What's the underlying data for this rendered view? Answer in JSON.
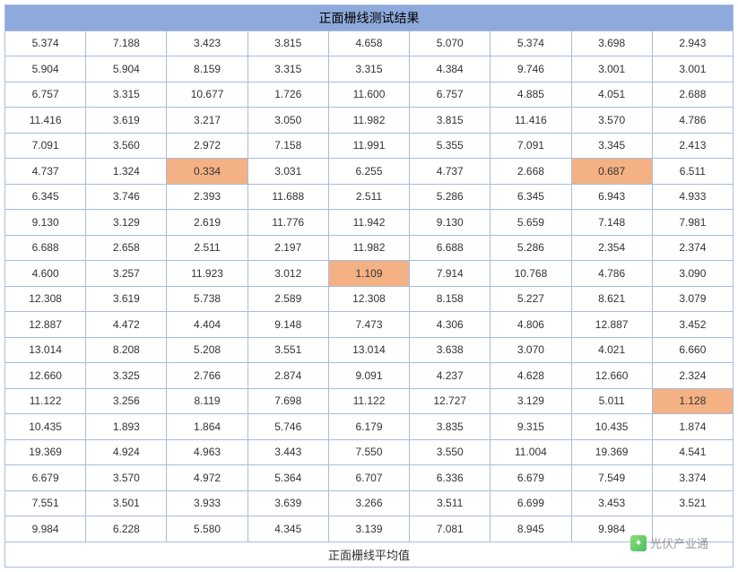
{
  "table": {
    "title": "正面栅线测试结果",
    "footer": "正面栅线平均值",
    "columns": 9,
    "title_bg": "#8ea9db",
    "border_color": "#a6bce0",
    "highlight_bg": "#f4b183",
    "font_size_cell": 12,
    "font_size_title": 14,
    "rows": [
      [
        {
          "v": "5.374"
        },
        {
          "v": "7.188"
        },
        {
          "v": "3.423"
        },
        {
          "v": "3.815"
        },
        {
          "v": "4.658"
        },
        {
          "v": "5.070"
        },
        {
          "v": "5.374"
        },
        {
          "v": "3.698"
        },
        {
          "v": "2.943"
        }
      ],
      [
        {
          "v": "5.904"
        },
        {
          "v": "5.904"
        },
        {
          "v": "8.159"
        },
        {
          "v": "3.315"
        },
        {
          "v": "3.315"
        },
        {
          "v": "4.384"
        },
        {
          "v": "9.746"
        },
        {
          "v": "3.001"
        },
        {
          "v": "3.001"
        }
      ],
      [
        {
          "v": "6.757"
        },
        {
          "v": "3.315"
        },
        {
          "v": "10.677"
        },
        {
          "v": "1.726"
        },
        {
          "v": "11.600"
        },
        {
          "v": "6.757"
        },
        {
          "v": "4.885"
        },
        {
          "v": "4.051"
        },
        {
          "v": "2.688"
        }
      ],
      [
        {
          "v": "11.416"
        },
        {
          "v": "3.619"
        },
        {
          "v": "3.217"
        },
        {
          "v": "3.050"
        },
        {
          "v": "11.982"
        },
        {
          "v": "3.815"
        },
        {
          "v": "11.416"
        },
        {
          "v": "3.570"
        },
        {
          "v": "4.786"
        }
      ],
      [
        {
          "v": "7.091"
        },
        {
          "v": "3.560"
        },
        {
          "v": "2.972"
        },
        {
          "v": "7.158"
        },
        {
          "v": "11.991"
        },
        {
          "v": "5.355"
        },
        {
          "v": "7.091"
        },
        {
          "v": "3.345"
        },
        {
          "v": "2.413"
        }
      ],
      [
        {
          "v": "4.737"
        },
        {
          "v": "1.324"
        },
        {
          "v": "0.334",
          "hl": true
        },
        {
          "v": "3.031"
        },
        {
          "v": "6.255"
        },
        {
          "v": "4.737"
        },
        {
          "v": "2.668"
        },
        {
          "v": "0.687",
          "hl": true
        },
        {
          "v": "6.511"
        }
      ],
      [
        {
          "v": "6.345"
        },
        {
          "v": "3.746"
        },
        {
          "v": "2.393"
        },
        {
          "v": "11.688"
        },
        {
          "v": "2.511"
        },
        {
          "v": "5.286"
        },
        {
          "v": "6.345"
        },
        {
          "v": "6.943"
        },
        {
          "v": "4.933"
        }
      ],
      [
        {
          "v": "9.130"
        },
        {
          "v": "3.129"
        },
        {
          "v": "2.619"
        },
        {
          "v": "11.776"
        },
        {
          "v": "11.942"
        },
        {
          "v": "9.130"
        },
        {
          "v": "5.659"
        },
        {
          "v": "7.148"
        },
        {
          "v": "7.981"
        }
      ],
      [
        {
          "v": "6.688"
        },
        {
          "v": "2.658"
        },
        {
          "v": "2.511"
        },
        {
          "v": "2.197"
        },
        {
          "v": "11.982"
        },
        {
          "v": "6.688"
        },
        {
          "v": "5.286"
        },
        {
          "v": "2.354"
        },
        {
          "v": "2.374"
        }
      ],
      [
        {
          "v": "4.600"
        },
        {
          "v": "3.257"
        },
        {
          "v": "11.923"
        },
        {
          "v": "3.012"
        },
        {
          "v": "1.109",
          "hl": true
        },
        {
          "v": "7.914"
        },
        {
          "v": "10.768"
        },
        {
          "v": "4.786"
        },
        {
          "v": "3.090"
        }
      ],
      [
        {
          "v": "12.308"
        },
        {
          "v": "3.619"
        },
        {
          "v": "5.738"
        },
        {
          "v": "2.589"
        },
        {
          "v": "12.308"
        },
        {
          "v": "8.158"
        },
        {
          "v": "5.227"
        },
        {
          "v": "8.621"
        },
        {
          "v": "3.079"
        }
      ],
      [
        {
          "v": "12.887"
        },
        {
          "v": "4.472"
        },
        {
          "v": "4.404"
        },
        {
          "v": "9.148"
        },
        {
          "v": "7.473"
        },
        {
          "v": "4.306"
        },
        {
          "v": "4.806"
        },
        {
          "v": "12.887"
        },
        {
          "v": "3.452"
        }
      ],
      [
        {
          "v": "13.014"
        },
        {
          "v": "8.208"
        },
        {
          "v": "5.208"
        },
        {
          "v": "3.551"
        },
        {
          "v": "13.014"
        },
        {
          "v": "3.638"
        },
        {
          "v": "3.070"
        },
        {
          "v": "4.021"
        },
        {
          "v": "6.660"
        }
      ],
      [
        {
          "v": "12.660"
        },
        {
          "v": "3.325"
        },
        {
          "v": "2.766"
        },
        {
          "v": "2.874"
        },
        {
          "v": "9.091"
        },
        {
          "v": "4.237"
        },
        {
          "v": "4.628"
        },
        {
          "v": "12.660"
        },
        {
          "v": "2.324"
        }
      ],
      [
        {
          "v": "11.122"
        },
        {
          "v": "3.256"
        },
        {
          "v": "8.119"
        },
        {
          "v": "7.698"
        },
        {
          "v": "11.122"
        },
        {
          "v": "12.727"
        },
        {
          "v": "3.129"
        },
        {
          "v": "5.011"
        },
        {
          "v": "1.128",
          "hl": true
        }
      ],
      [
        {
          "v": "10.435"
        },
        {
          "v": "1.893"
        },
        {
          "v": "1.864"
        },
        {
          "v": "5.746"
        },
        {
          "v": "6.179"
        },
        {
          "v": "3.835"
        },
        {
          "v": "9.315"
        },
        {
          "v": "10.435"
        },
        {
          "v": "1.874"
        }
      ],
      [
        {
          "v": "19.369"
        },
        {
          "v": "4.924"
        },
        {
          "v": "4.963"
        },
        {
          "v": "3.443"
        },
        {
          "v": "7.550"
        },
        {
          "v": "3.550"
        },
        {
          "v": "11.004"
        },
        {
          "v": "19.369"
        },
        {
          "v": "4.541"
        }
      ],
      [
        {
          "v": "6.679"
        },
        {
          "v": "3.570"
        },
        {
          "v": "4.972"
        },
        {
          "v": "5.364"
        },
        {
          "v": "6.707"
        },
        {
          "v": "6.336"
        },
        {
          "v": "6.679"
        },
        {
          "v": "7.549"
        },
        {
          "v": "3.374"
        }
      ],
      [
        {
          "v": "7.551"
        },
        {
          "v": "3.501"
        },
        {
          "v": "3.933"
        },
        {
          "v": "3.639"
        },
        {
          "v": "3.266"
        },
        {
          "v": "3.511"
        },
        {
          "v": "6.699"
        },
        {
          "v": "3.453"
        },
        {
          "v": "3.521"
        }
      ],
      [
        {
          "v": "9.984"
        },
        {
          "v": "6.228"
        },
        {
          "v": "5.580"
        },
        {
          "v": "4.345"
        },
        {
          "v": "3.139"
        },
        {
          "v": "7.081"
        },
        {
          "v": "8.945"
        },
        {
          "v": "9.984"
        },
        {
          "v": ""
        }
      ]
    ]
  },
  "watermark": {
    "text": "光伏产业通",
    "icon_glyph": "✦"
  }
}
